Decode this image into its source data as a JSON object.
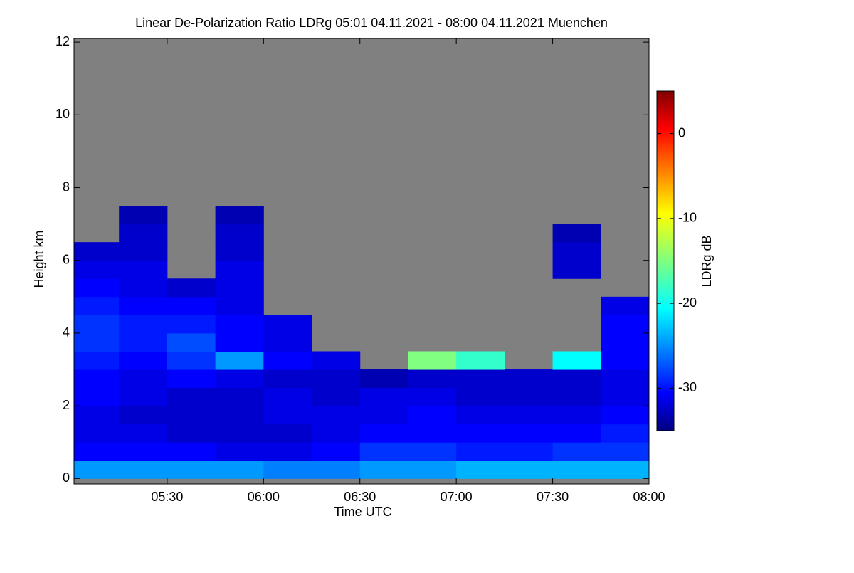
{
  "chart_data": {
    "type": "heatmap",
    "title": "Linear De-Polarization Ratio LDRg   05:01 04.11.2021 - 08:00 04.11.2021 Muenchen",
    "xlabel": "Time UTC",
    "ylabel": "Height km",
    "colorbar_label": "LDRg dB",
    "background_color": "#808080",
    "xlim": [
      5.0167,
      8.0
    ],
    "xticks": [
      {
        "value": 5.5,
        "label": "05:30"
      },
      {
        "value": 6.0,
        "label": "06:00"
      },
      {
        "value": 6.5,
        "label": "06:30"
      },
      {
        "value": 7.0,
        "label": "07:00"
      },
      {
        "value": 7.5,
        "label": "07:30"
      },
      {
        "value": 8.0,
        "label": "08:00"
      }
    ],
    "ylim": [
      -0.15,
      12.1
    ],
    "yticks": [
      0,
      2,
      4,
      6,
      8,
      10,
      12
    ],
    "zlim": [
      -35,
      5
    ],
    "zticks": [
      -30,
      -20,
      -10,
      0
    ],
    "colormap": "jet",
    "x": [
      5.125,
      5.375,
      5.625,
      5.875,
      6.125,
      6.375,
      6.625,
      6.875,
      7.125,
      7.375,
      7.625,
      7.875
    ],
    "y": [
      0.25,
      0.75,
      1.25,
      1.75,
      2.25,
      2.75,
      3.25,
      3.75,
      4.25,
      4.75,
      5.25,
      5.75,
      6.25,
      6.75,
      7.25
    ],
    "z": [
      [
        -24,
        -24,
        -24,
        -24,
        -25,
        -25,
        -24,
        -24,
        -23,
        -23,
        -23,
        -23
      ],
      [
        -30,
        -30,
        -30,
        -31,
        -31,
        -30,
        -28,
        -28,
        -29,
        -29,
        -28,
        -28
      ],
      [
        -31,
        -31,
        -32,
        -32,
        -32,
        -31,
        -30,
        -30,
        -30,
        -30,
        -30,
        -29
      ],
      [
        -31,
        -32,
        -32,
        -32,
        -31,
        -31,
        -31,
        -30,
        -31,
        -31,
        -31,
        -30
      ],
      [
        -30,
        -31,
        -32,
        -32,
        -31,
        -32,
        -31,
        -31,
        -32,
        -32,
        -32,
        -31
      ],
      [
        -30,
        -31,
        -30,
        -31,
        -32,
        -32,
        -33,
        -32,
        -32,
        -32,
        -32,
        -31
      ],
      [
        -29,
        -30,
        -28,
        -24,
        -30,
        -31,
        null,
        -15,
        -18,
        null,
        -20,
        -30
      ],
      [
        -28,
        -29,
        -27,
        -30,
        -31,
        null,
        null,
        null,
        null,
        null,
        null,
        -30
      ],
      [
        -28,
        -29,
        -29,
        -30,
        -31,
        null,
        null,
        null,
        null,
        null,
        null,
        -30
      ],
      [
        -29,
        -30,
        -30,
        -31,
        null,
        null,
        null,
        null,
        null,
        null,
        null,
        -31
      ],
      [
        -30,
        -31,
        -32,
        -31,
        null,
        null,
        null,
        null,
        null,
        null,
        null,
        null
      ],
      [
        -31,
        -31,
        null,
        -31,
        null,
        null,
        null,
        null,
        null,
        null,
        -32,
        null
      ],
      [
        -32,
        -32,
        null,
        -32,
        null,
        null,
        null,
        null,
        null,
        null,
        -32,
        null
      ],
      [
        null,
        -32,
        null,
        -32,
        null,
        null,
        null,
        null,
        null,
        null,
        -33,
        null
      ],
      [
        null,
        -33,
        null,
        -33,
        null,
        null,
        null,
        null,
        null,
        null,
        null,
        null
      ]
    ]
  }
}
